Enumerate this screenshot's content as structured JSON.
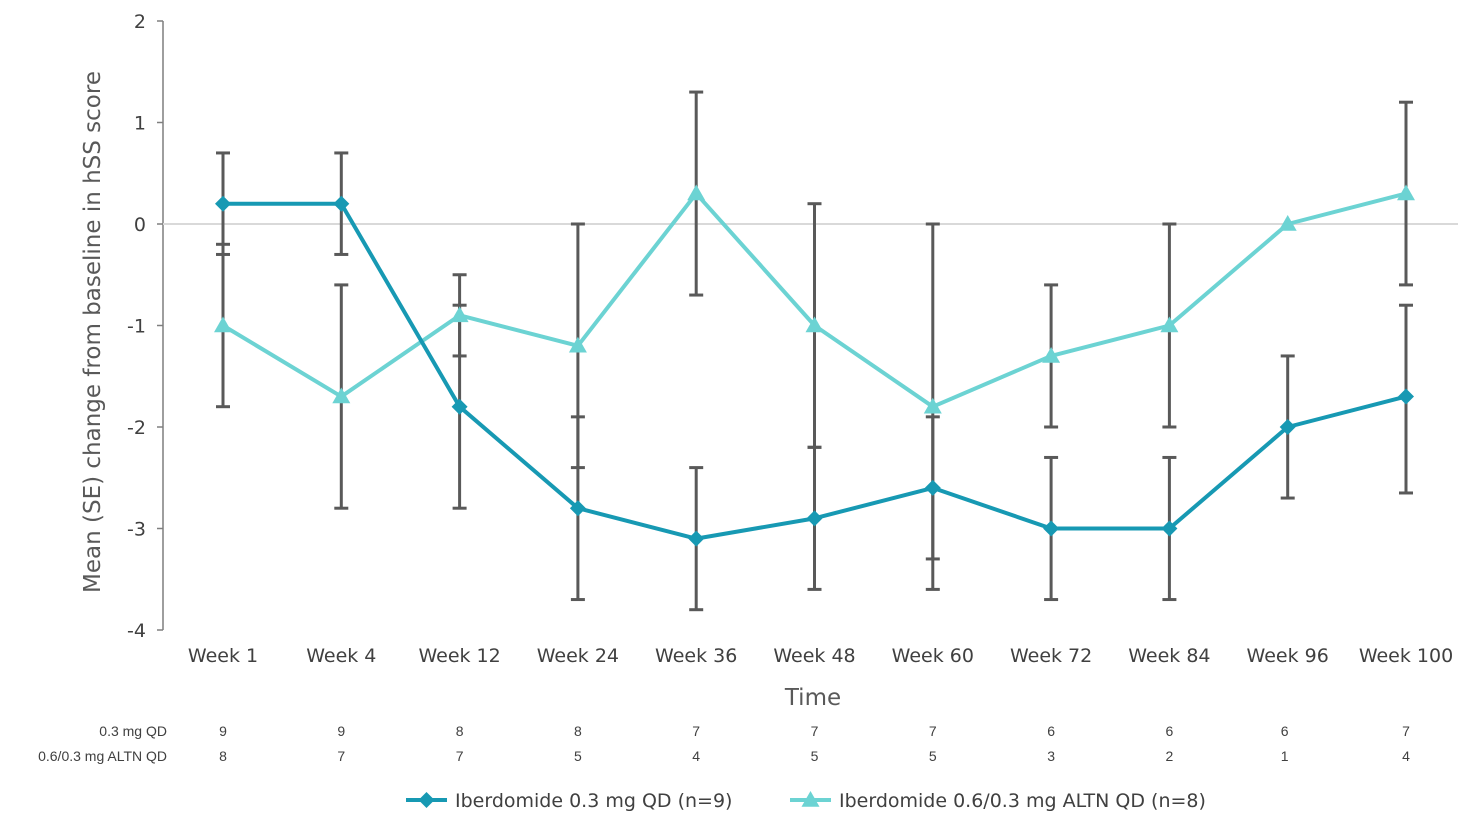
{
  "chart_data": {
    "type": "line",
    "title": "",
    "xlabel": "Time",
    "ylabel": "Mean (SE) change from baseline in hSS score",
    "ylim": [
      -4,
      2
    ],
    "yticks": [
      2,
      1,
      0,
      -1,
      -2,
      -3,
      -4
    ],
    "grid": false,
    "reference_line": 0,
    "categories": [
      "Week 1",
      "Week 4",
      "Week 12",
      "Week 24",
      "Week 36",
      "Week 48",
      "Week 60",
      "Week 72",
      "Week 84",
      "Week 96",
      "Week 100"
    ],
    "series": [
      {
        "name": "Iberdomide 0.3 mg QD (n=9)",
        "color": "#1799b3",
        "marker": "diamond",
        "values": [
          0.2,
          0.2,
          -1.8,
          -2.8,
          -3.1,
          -2.9,
          -2.6,
          -3.0,
          -3.0,
          -2.0,
          -1.7
        ],
        "err_lower": [
          -0.3,
          -0.3,
          -2.8,
          -3.7,
          -3.8,
          -3.6,
          -3.6,
          -3.7,
          -3.7,
          -2.7,
          -2.65
        ],
        "err_upper": [
          0.7,
          0.7,
          -0.8,
          -1.9,
          -2.4,
          -2.2,
          -1.9,
          -2.3,
          -2.3,
          -1.3,
          -0.8
        ]
      },
      {
        "name": "Iberdomide 0.6/0.3 mg ALTN QD (n=8)",
        "color": "#6cd3d3",
        "marker": "triangle",
        "values": [
          -1.0,
          -1.7,
          -0.9,
          -1.2,
          0.3,
          -1.0,
          -1.8,
          -1.3,
          -1.0,
          0.0,
          0.3
        ],
        "err_lower": [
          -1.8,
          -2.8,
          -1.3,
          -2.4,
          -0.7,
          -2.2,
          -3.3,
          -2.0,
          -2.0,
          0.0,
          -0.6
        ],
        "err_upper": [
          -0.2,
          -0.6,
          -0.5,
          0.0,
          1.3,
          0.2,
          0.0,
          -0.6,
          0.0,
          0.0,
          1.2
        ]
      }
    ],
    "at_risk": {
      "rows": [
        {
          "label": "0.3 mg QD",
          "values": [
            "9",
            "9",
            "8",
            "8",
            "7",
            "7",
            "7",
            "6",
            "6",
            "6",
            "7"
          ]
        },
        {
          "label": "0.6/0.3 mg ALTN QD",
          "values": [
            "8",
            "7",
            "7",
            "5",
            "4",
            "5",
            "5",
            "3",
            "2",
            "1",
            "4"
          ]
        }
      ]
    },
    "legend_position": "bottom"
  }
}
